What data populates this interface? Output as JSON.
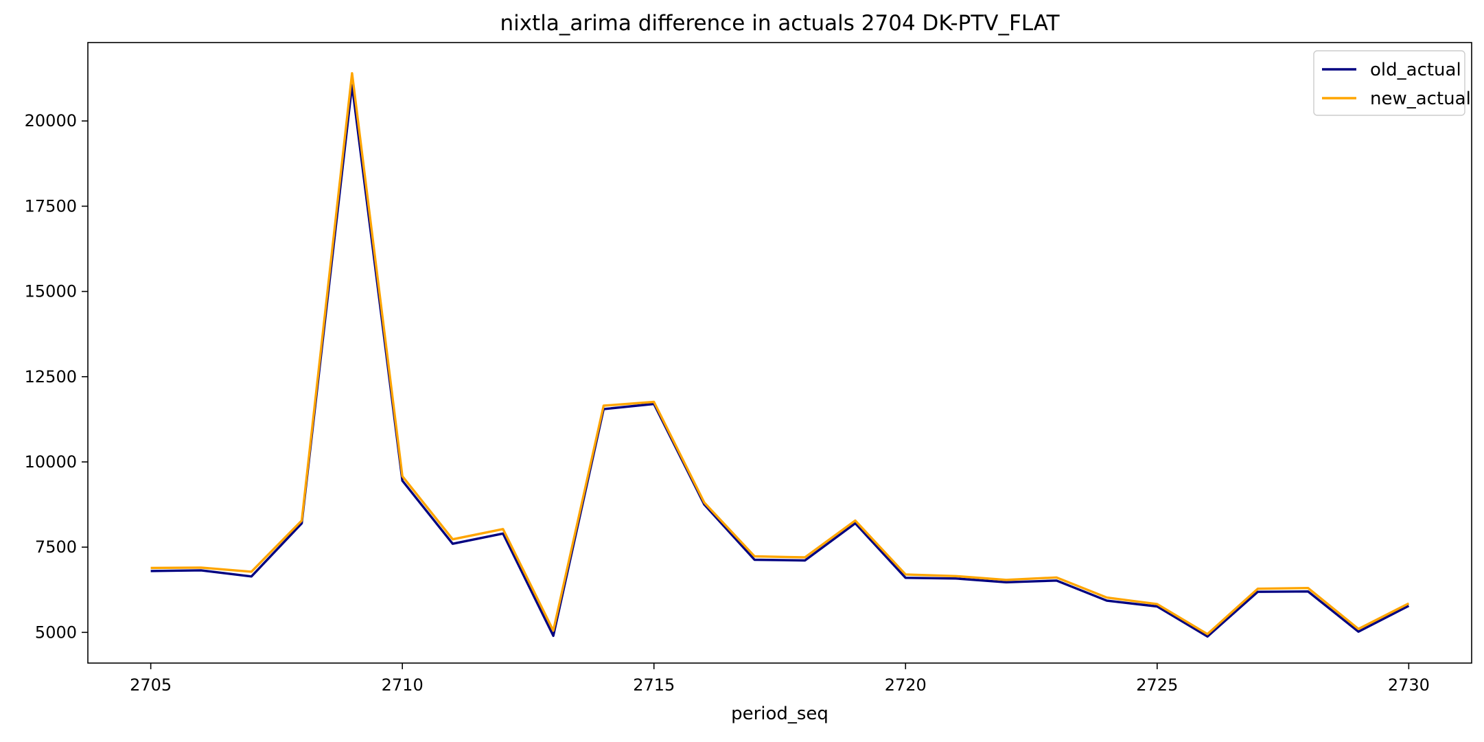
{
  "chart_data": {
    "type": "line",
    "title": "nixtla_arima difference in actuals 2704 DK-PTV_FLAT",
    "xlabel": "period_seq",
    "ylabel": "",
    "x": [
      2705,
      2706,
      2707,
      2708,
      2709,
      2710,
      2711,
      2712,
      2713,
      2714,
      2715,
      2716,
      2717,
      2718,
      2719,
      2720,
      2721,
      2722,
      2723,
      2724,
      2725,
      2726,
      2727,
      2728,
      2729,
      2730
    ],
    "xlim": [
      2703.75,
      2731.25
    ],
    "ylim": [
      4100,
      22300
    ],
    "xticks": [
      2705,
      2710,
      2715,
      2720,
      2725,
      2730
    ],
    "yticks": [
      5000,
      7500,
      10000,
      12500,
      15000,
      17500,
      20000
    ],
    "grid": false,
    "legend_position": "top-right",
    "series": [
      {
        "name": "old_actual",
        "color": "#000080",
        "values": [
          6800,
          6820,
          6640,
          8200,
          21050,
          9450,
          7600,
          7900,
          4900,
          11550,
          11700,
          8750,
          7130,
          7110,
          8200,
          6600,
          6580,
          6470,
          6520,
          5930,
          5760,
          4880,
          6190,
          6200,
          5020,
          5780
        ]
      },
      {
        "name": "new_actual",
        "color": "#ffa500",
        "values": [
          6890,
          6900,
          6780,
          8280,
          21400,
          9580,
          7730,
          8030,
          5050,
          11650,
          11760,
          8810,
          7230,
          7200,
          8280,
          6700,
          6650,
          6540,
          6610,
          6020,
          5830,
          4950,
          6280,
          6300,
          5100,
          5850
        ]
      }
    ]
  }
}
